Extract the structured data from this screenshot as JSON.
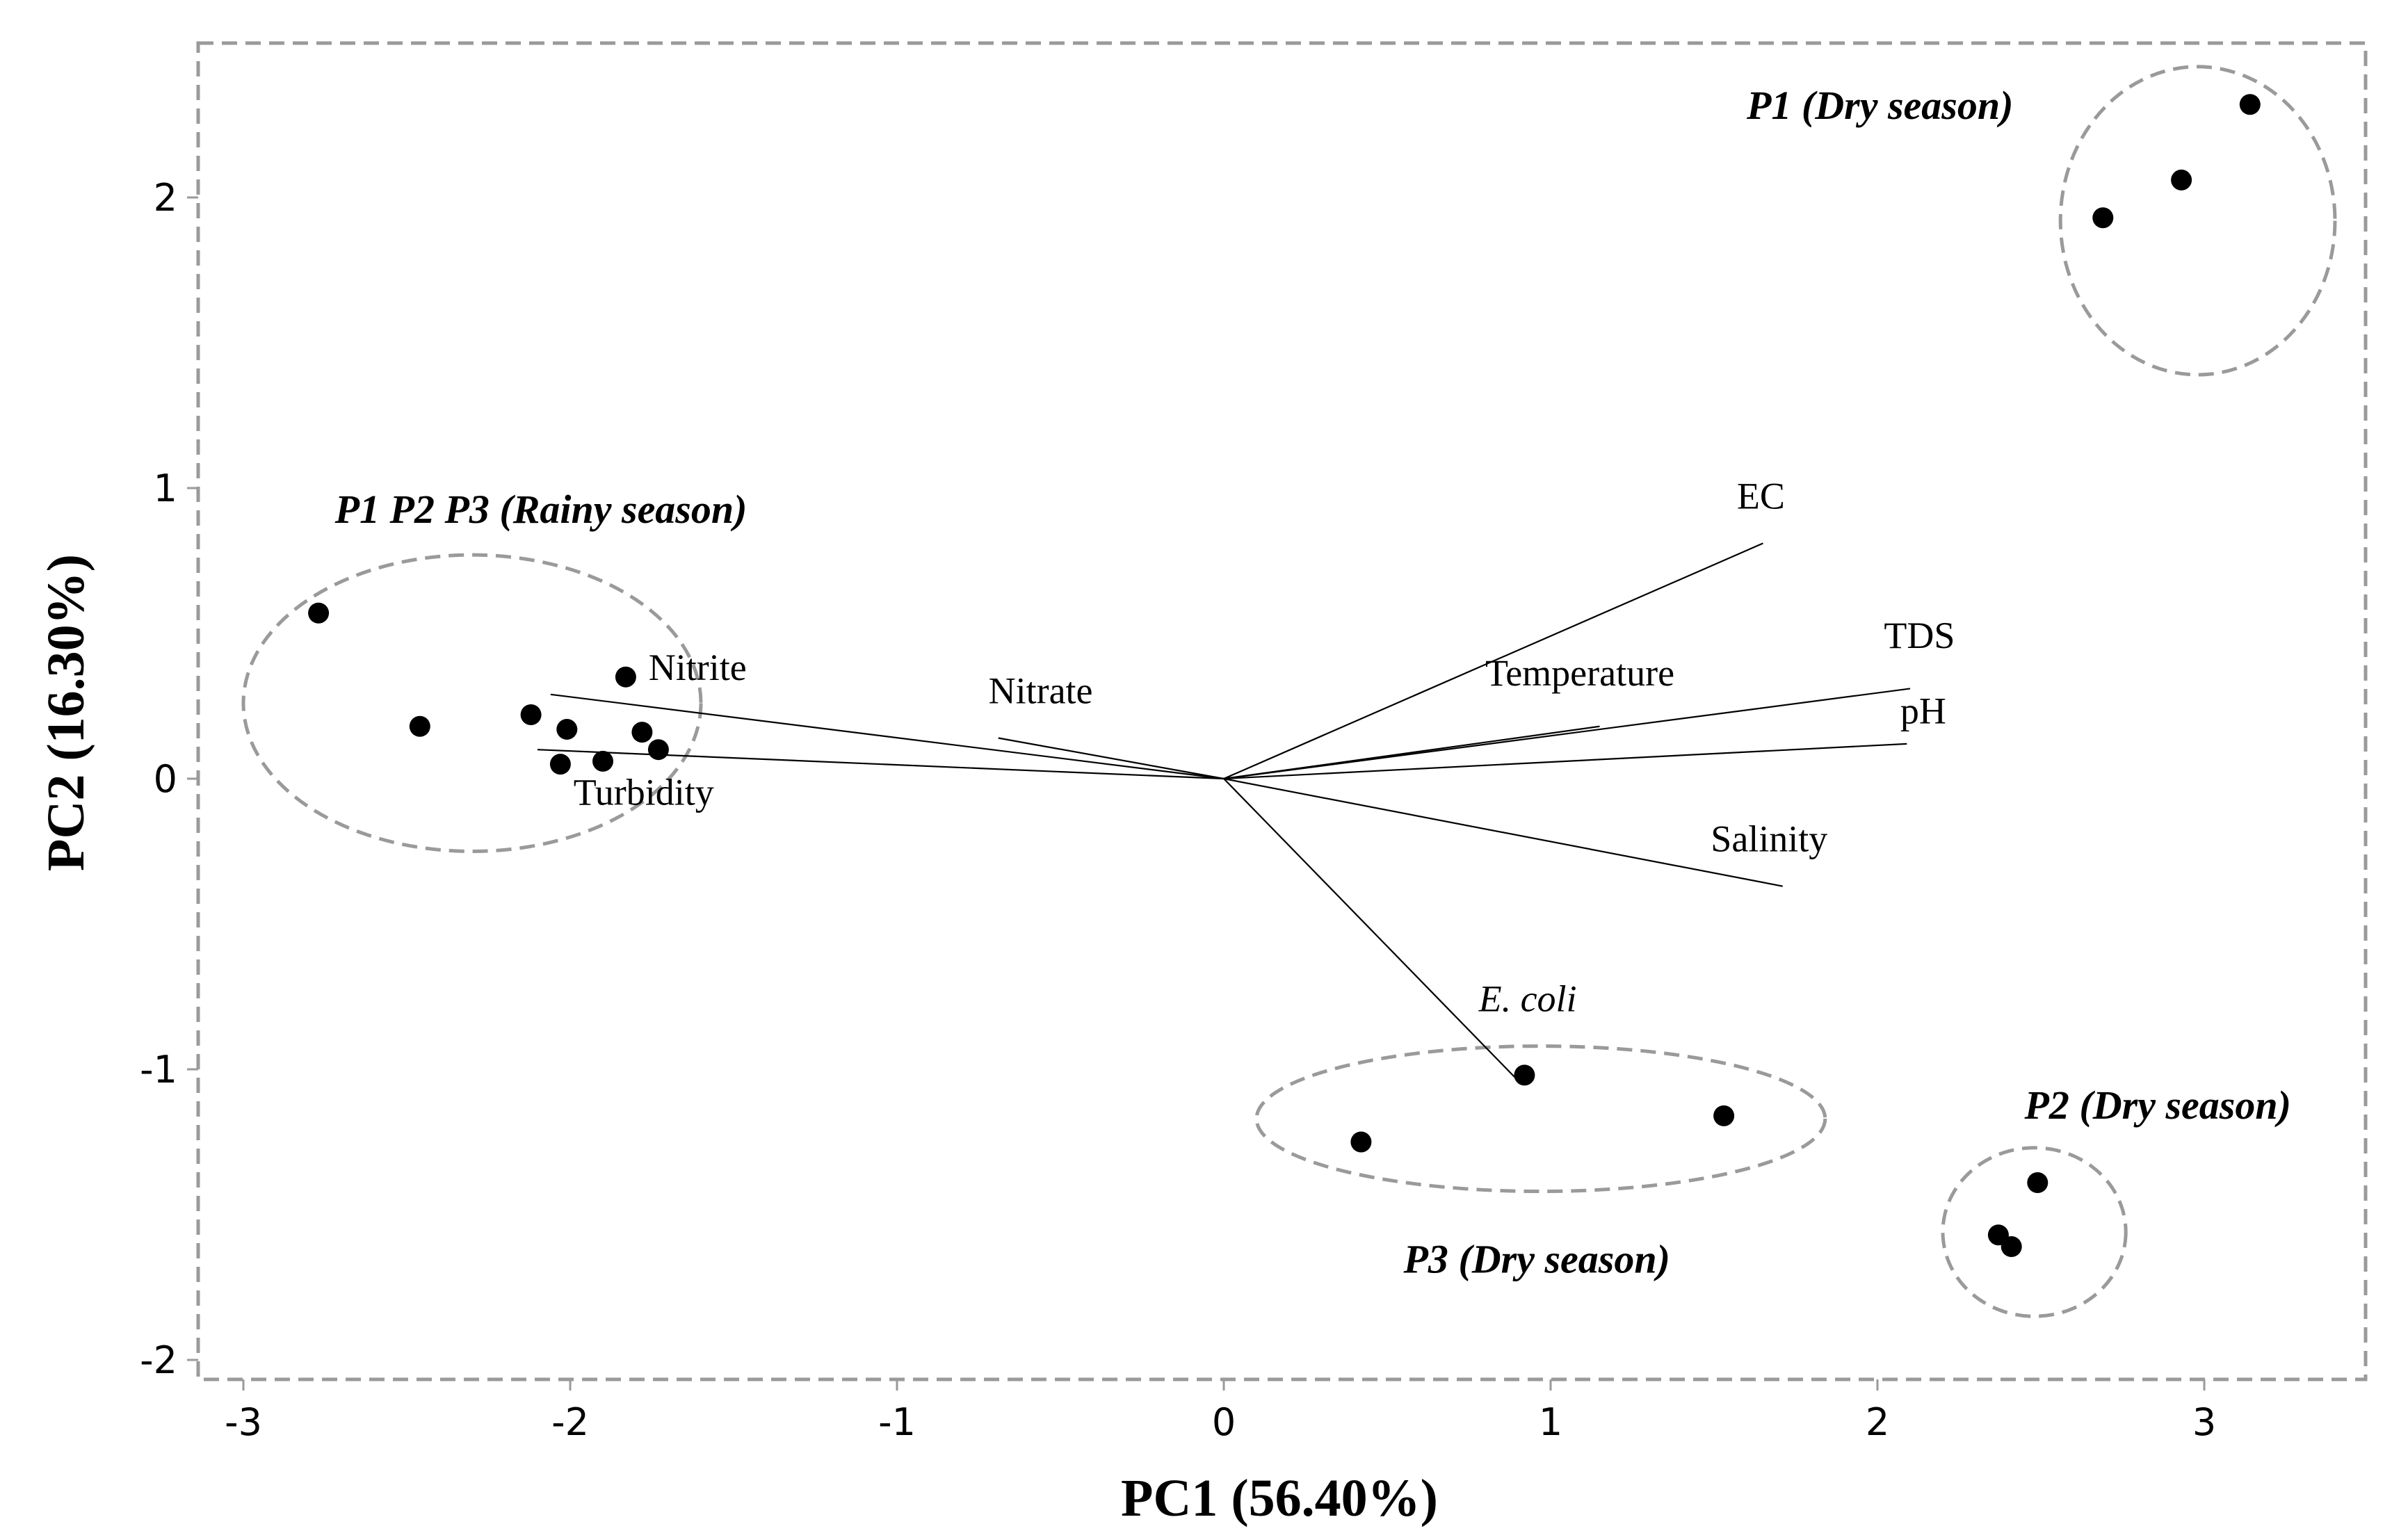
{
  "chart_data": {
    "type": "scatter",
    "title": "",
    "xlabel": "PC1 (56.40%)",
    "ylabel": "PC2 (16.30%)",
    "xlim": [
      -3.15,
      3.45
    ],
    "ylim": [
      -2.07,
      2.55
    ],
    "xticks": [
      "-3",
      "-2",
      "-1",
      "0",
      "1",
      "2",
      "3"
    ],
    "yticks": [
      "-2",
      "-1",
      "0",
      "1",
      "2"
    ],
    "scores": [
      {
        "x": -2.77,
        "y": 0.57
      },
      {
        "x": -2.46,
        "y": 0.18
      },
      {
        "x": -2.12,
        "y": 0.22
      },
      {
        "x": -2.01,
        "y": 0.17
      },
      {
        "x": -2.03,
        "y": 0.05
      },
      {
        "x": -1.9,
        "y": 0.06
      },
      {
        "x": -1.83,
        "y": 0.35
      },
      {
        "x": -1.78,
        "y": 0.16
      },
      {
        "x": -1.73,
        "y": 0.1
      },
      {
        "x": 0.42,
        "y": -1.25
      },
      {
        "x": 0.92,
        "y": -1.02
      },
      {
        "x": 1.53,
        "y": -1.16
      },
      {
        "x": 2.37,
        "y": -1.57
      },
      {
        "x": 2.41,
        "y": -1.61
      },
      {
        "x": 2.49,
        "y": -1.39
      },
      {
        "x": 2.69,
        "y": 1.93
      },
      {
        "x": 2.93,
        "y": 2.06
      },
      {
        "x": 3.14,
        "y": 2.32
      }
    ],
    "loadings": [
      {
        "name": "EC",
        "x": 1.65,
        "y": 0.81,
        "italic": false,
        "lx": 1.57,
        "ly": 0.93
      },
      {
        "name": "TDS",
        "x": 2.1,
        "y": 0.31,
        "italic": false,
        "lx": 2.02,
        "ly": 0.45
      },
      {
        "name": "Temperature",
        "x": 1.15,
        "y": 0.18,
        "italic": false,
        "lx": 0.8,
        "ly": 0.32
      },
      {
        "name": "pH",
        "x": 2.09,
        "y": 0.12,
        "italic": false,
        "lx": 2.07,
        "ly": 0.19
      },
      {
        "name": "Salinity",
        "x": 1.71,
        "y": -0.37,
        "italic": false,
        "lx": 1.49,
        "ly": -0.25
      },
      {
        "name": "E. coli",
        "x": 0.91,
        "y": -1.05,
        "italic": true,
        "lx": 0.78,
        "ly": -0.8
      },
      {
        "name": "Nitrate",
        "x": -0.69,
        "y": 0.14,
        "italic": false,
        "lx": -0.72,
        "ly": 0.26
      },
      {
        "name": "Nitrite",
        "x": -2.06,
        "y": 0.29,
        "italic": false,
        "lx": -1.76,
        "ly": 0.34
      },
      {
        "name": "Turbidity",
        "x": -2.1,
        "y": 0.1,
        "italic": false,
        "lx": -1.99,
        "ly": -0.09
      }
    ],
    "groups": [
      {
        "label": "P1 P2 P3 (Rainy season)",
        "cx": -2.3,
        "cy": 0.26,
        "rx": 0.7,
        "ry": 0.51,
        "lx": -2.72,
        "ly": 0.88
      },
      {
        "label": "P1 (Dry season)",
        "cx": 2.98,
        "cy": 1.92,
        "rx": 0.42,
        "ry": 0.53,
        "lx": 1.6,
        "ly": 2.27
      },
      {
        "label": "P2 (Dry season)",
        "cx": 2.48,
        "cy": -1.56,
        "rx": 0.28,
        "ry": 0.29,
        "lx": 2.45,
        "ly": -1.17
      },
      {
        "label": "P3 (Dry season)",
        "cx": 0.97,
        "cy": -1.17,
        "rx": 0.87,
        "ry": 0.25,
        "lx": 0.55,
        "ly": -1.7
      }
    ]
  }
}
